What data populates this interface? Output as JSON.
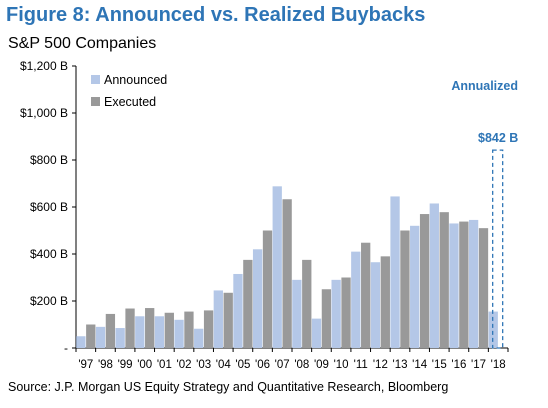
{
  "title": "Figure 8: Announced vs. Realized Buybacks",
  "subtitle": "S&P 500 Companies",
  "source": "Source: J.P. Morgan US Equity Strategy and Quantitative Research, Bloomberg",
  "annotation_annualized": "Annualized",
  "annotation_value": "$842 B",
  "chart_data": {
    "type": "bar",
    "title": "Figure 8: Announced vs. Realized Buybacks",
    "subtitle": "S&P 500 Companies",
    "categories": [
      "'97",
      "'98",
      "'99",
      "'00",
      "'01",
      "'02",
      "'03",
      "'04",
      "'05",
      "'06",
      "'07",
      "'08",
      "'09",
      "'10",
      "'11",
      "'12",
      "'13",
      "'14",
      "'15",
      "'16",
      "'17",
      "'18"
    ],
    "y_tick_labels": [
      "-",
      "$200 B",
      "$400 B",
      "$600 B",
      "$800 B",
      "$1,000 B",
      "$1,200 B"
    ],
    "ylim": [
      0,
      1200
    ],
    "series": [
      {
        "name": "Announced",
        "color": "#b4c7e7",
        "values": [
          50,
          90,
          85,
          135,
          135,
          120,
          82,
          245,
          315,
          420,
          688,
          290,
          125,
          290,
          410,
          365,
          645,
          520,
          615,
          530,
          545,
          155
        ]
      },
      {
        "name": "Executed",
        "color": "#999999",
        "values": [
          100,
          145,
          168,
          170,
          150,
          155,
          160,
          235,
          375,
          500,
          633,
          375,
          250,
          300,
          448,
          390,
          500,
          570,
          578,
          538,
          510,
          null
        ]
      }
    ],
    "annualized_outline": {
      "category": "'18",
      "value": 842,
      "color": "#2e75b6"
    },
    "legend": "top-left",
    "grid": false
  }
}
